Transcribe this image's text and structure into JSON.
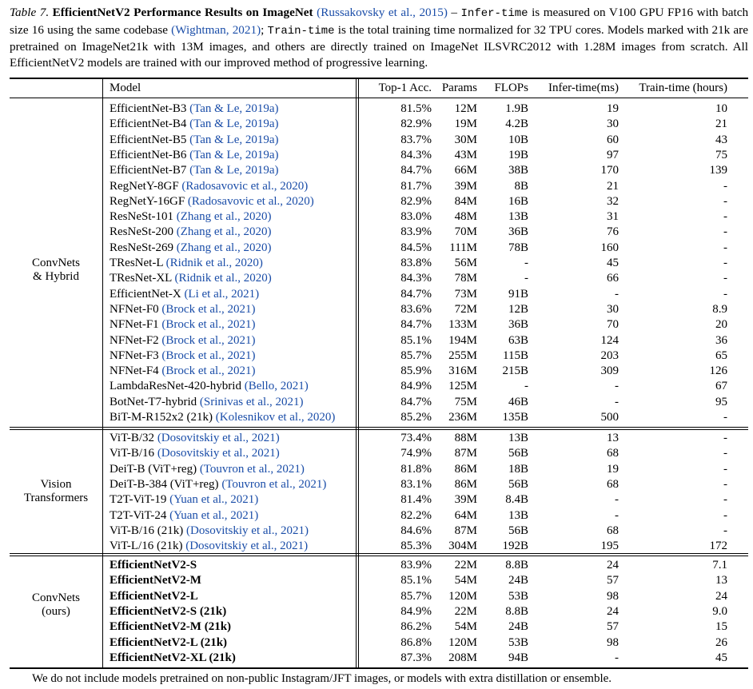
{
  "caption": {
    "prefix": "Table 7.",
    "title": "EfficientNetV2 Performance Results on ImageNet",
    "cite1": "(Russakovsky et al., 2015)",
    "dash": " – ",
    "infer_term": "Infer-time",
    "text1": " is measured on V100 GPU FP16 with batch size 16 using the same codebase ",
    "cite2": "(Wightman, 2021)",
    "text2": "; ",
    "train_term": "Train-time",
    "text3": " is the total training time normalized for 32 TPU cores. Models marked with 21k are pretrained on ImageNet21k with 13M images, and others are directly trained on ImageNet ILSVRC2012 with 1.28M images from scratch. All EfficientNetV2 models are trained with our improved method of progressive learning."
  },
  "header": {
    "model": "Model",
    "top1": "Top-1 Acc.",
    "params": "Params",
    "flops": "FLOPs",
    "infer": "Infer-time(ms)",
    "train": "Train-time (hours)"
  },
  "groups": [
    {
      "label_line1": "ConvNets",
      "label_line2": "& Hybrid",
      "rows": [
        {
          "name": "EfficientNet-B3",
          "cite": "(Tan & Le, 2019a)",
          "top1": "81.5%",
          "params": "12M",
          "flops": "1.9B",
          "infer": "19",
          "train": "10"
        },
        {
          "name": "EfficientNet-B4",
          "cite": "(Tan & Le, 2019a)",
          "top1": "82.9%",
          "params": "19M",
          "flops": "4.2B",
          "infer": "30",
          "train": "21"
        },
        {
          "name": "EfficientNet-B5",
          "cite": "(Tan & Le, 2019a)",
          "top1": "83.7%",
          "params": "30M",
          "flops": "10B",
          "infer": "60",
          "train": "43"
        },
        {
          "name": "EfficientNet-B6",
          "cite": "(Tan & Le, 2019a)",
          "top1": "84.3%",
          "params": "43M",
          "flops": "19B",
          "infer": "97",
          "train": "75"
        },
        {
          "name": "EfficientNet-B7",
          "cite": "(Tan & Le, 2019a)",
          "top1": "84.7%",
          "params": "66M",
          "flops": "38B",
          "infer": "170",
          "train": "139"
        },
        {
          "name": "RegNetY-8GF",
          "cite": "(Radosavovic et al., 2020)",
          "top1": "81.7%",
          "params": "39M",
          "flops": "8B",
          "infer": "21",
          "train": "-"
        },
        {
          "name": "RegNetY-16GF",
          "cite": "(Radosavovic et al., 2020)",
          "top1": "82.9%",
          "params": "84M",
          "flops": "16B",
          "infer": "32",
          "train": "-"
        },
        {
          "name": "ResNeSt-101",
          "cite": "(Zhang et al., 2020)",
          "top1": "83.0%",
          "params": "48M",
          "flops": "13B",
          "infer": "31",
          "train": "-"
        },
        {
          "name": "ResNeSt-200",
          "cite": "(Zhang et al., 2020)",
          "top1": "83.9%",
          "params": "70M",
          "flops": "36B",
          "infer": "76",
          "train": "-"
        },
        {
          "name": "ResNeSt-269",
          "cite": "(Zhang et al., 2020)",
          "top1": "84.5%",
          "params": "111M",
          "flops": "78B",
          "infer": "160",
          "train": "-"
        },
        {
          "name": "TResNet-L",
          "cite": "(Ridnik et al., 2020)",
          "top1": "83.8%",
          "params": "56M",
          "flops": "-",
          "infer": "45",
          "train": "-"
        },
        {
          "name": "TResNet-XL",
          "cite": "(Ridnik et al., 2020)",
          "top1": "84.3%",
          "params": "78M",
          "flops": "-",
          "infer": "66",
          "train": "-"
        },
        {
          "name": "EfficientNet-X",
          "cite": "(Li et al., 2021)",
          "top1": "84.7%",
          "params": "73M",
          "flops": "91B",
          "infer": "-",
          "train": "-"
        },
        {
          "name": "NFNet-F0",
          "cite": "(Brock et al., 2021)",
          "top1": "83.6%",
          "params": "72M",
          "flops": "12B",
          "infer": "30",
          "train": "8.9"
        },
        {
          "name": "NFNet-F1",
          "cite": "(Brock et al., 2021)",
          "top1": "84.7%",
          "params": "133M",
          "flops": "36B",
          "infer": "70",
          "train": "20"
        },
        {
          "name": "NFNet-F2",
          "cite": "(Brock et al., 2021)",
          "top1": "85.1%",
          "params": "194M",
          "flops": "63B",
          "infer": "124",
          "train": "36"
        },
        {
          "name": "NFNet-F3",
          "cite": "(Brock et al., 2021)",
          "top1": "85.7%",
          "params": "255M",
          "flops": "115B",
          "infer": "203",
          "train": "65"
        },
        {
          "name": "NFNet-F4",
          "cite": "(Brock et al., 2021)",
          "top1": "85.9%",
          "params": "316M",
          "flops": "215B",
          "infer": "309",
          "train": "126"
        },
        {
          "name": "LambdaResNet-420-hybrid",
          "cite": "(Bello, 2021)",
          "top1": "84.9%",
          "params": "125M",
          "flops": "-",
          "infer": "-",
          "train": "67"
        },
        {
          "name": "BotNet-T7-hybrid",
          "cite": "(Srinivas et al., 2021)",
          "top1": "84.7%",
          "params": "75M",
          "flops": "46B",
          "infer": "-",
          "train": "95"
        },
        {
          "name": "BiT-M-R152x2 (21k)",
          "cite": "(Kolesnikov et al., 2020)",
          "top1": "85.2%",
          "params": "236M",
          "flops": "135B",
          "infer": "500",
          "train": "-"
        }
      ]
    },
    {
      "label_line1": "Vision",
      "label_line2": "Transformers",
      "rows": [
        {
          "name": "ViT-B/32",
          "cite": "(Dosovitskiy et al., 2021)",
          "top1": "73.4%",
          "params": "88M",
          "flops": "13B",
          "infer": "13",
          "train": "-"
        },
        {
          "name": "ViT-B/16",
          "cite": "(Dosovitskiy et al., 2021)",
          "top1": "74.9%",
          "params": "87M",
          "flops": "56B",
          "infer": "68",
          "train": "-"
        },
        {
          "name": "DeiT-B (ViT+reg)",
          "cite": "(Touvron et al., 2021)",
          "top1": "81.8%",
          "params": "86M",
          "flops": "18B",
          "infer": "19",
          "train": "-"
        },
        {
          "name": "DeiT-B-384 (ViT+reg)",
          "cite": "(Touvron et al., 2021)",
          "top1": "83.1%",
          "params": "86M",
          "flops": "56B",
          "infer": "68",
          "train": "-"
        },
        {
          "name": "T2T-ViT-19",
          "cite": "(Yuan et al., 2021)",
          "top1": "81.4%",
          "params": "39M",
          "flops": "8.4B",
          "infer": "-",
          "train": "-"
        },
        {
          "name": "T2T-ViT-24",
          "cite": "(Yuan et al., 2021)",
          "top1": "82.2%",
          "params": "64M",
          "flops": "13B",
          "infer": "-",
          "train": "-"
        },
        {
          "name": "ViT-B/16 (21k)",
          "cite": "(Dosovitskiy et al., 2021)",
          "top1": "84.6%",
          "params": "87M",
          "flops": "56B",
          "infer": "68",
          "train": "-"
        },
        {
          "name": "ViT-L/16 (21k)",
          "cite": "(Dosovitskiy et al., 2021)",
          "top1": "85.3%",
          "params": "304M",
          "flops": "192B",
          "infer": "195",
          "train": "172"
        }
      ]
    },
    {
      "label_line1": "ConvNets",
      "label_line2": "(ours)",
      "rows": [
        {
          "name": "EfficientNetV2-S",
          "cite": "",
          "bold": true,
          "top1": "83.9%",
          "params": "22M",
          "flops": "8.8B",
          "infer": "24",
          "train": "7.1"
        },
        {
          "name": "EfficientNetV2-M",
          "cite": "",
          "bold": true,
          "top1": "85.1%",
          "params": "54M",
          "flops": "24B",
          "infer": "57",
          "train": "13"
        },
        {
          "name": "EfficientNetV2-L",
          "cite": "",
          "bold": true,
          "top1": "85.7%",
          "params": "120M",
          "flops": "53B",
          "infer": "98",
          "train": "24"
        },
        {
          "name": "EfficientNetV2-S (21k)",
          "cite": "",
          "bold": true,
          "top1": "84.9%",
          "params": "22M",
          "flops": "8.8B",
          "infer": "24",
          "train": "9.0"
        },
        {
          "name": "EfficientNetV2-M (21k)",
          "cite": "",
          "bold": true,
          "top1": "86.2%",
          "params": "54M",
          "flops": "24B",
          "infer": "57",
          "train": "15"
        },
        {
          "name": "EfficientNetV2-L (21k)",
          "cite": "",
          "bold": true,
          "top1": "86.8%",
          "params": "120M",
          "flops": "53B",
          "infer": "98",
          "train": "26"
        },
        {
          "name": "EfficientNetV2-XL (21k)",
          "cite": "",
          "bold": true,
          "top1": "87.3%",
          "params": "208M",
          "flops": "94B",
          "infer": "-",
          "train": "45"
        }
      ]
    }
  ],
  "footnote": "We do not include models pretrained on non-public Instagram/JFT images, or models with extra distillation or ensemble."
}
